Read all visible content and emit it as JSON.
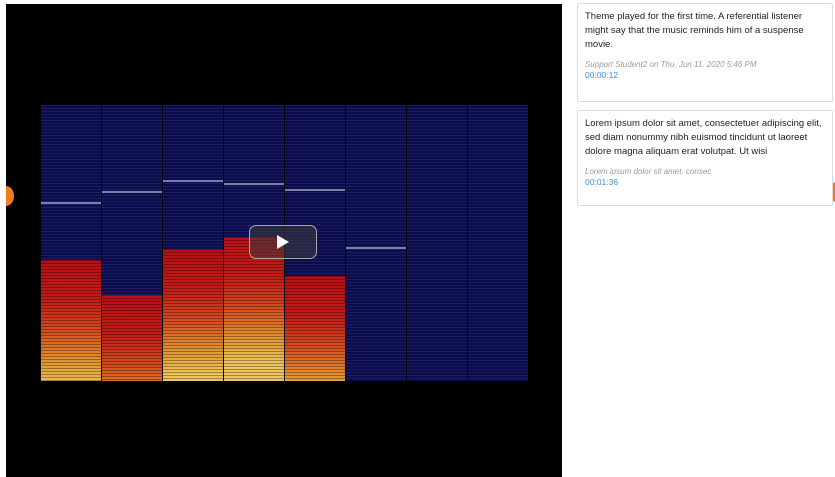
{
  "player": {
    "play_icon": "play-icon",
    "visualizer_bands": [
      {
        "level": 0.44,
        "peak": 0.64
      },
      {
        "level": 0.31,
        "peak": 0.68
      },
      {
        "level": 0.48,
        "peak": 0.72
      },
      {
        "level": 0.52,
        "peak": 0.71
      },
      {
        "level": 0.38,
        "peak": 0.69
      },
      {
        "level": 0.0,
        "peak": 0.48
      },
      {
        "level": 0.0,
        "peak": null
      },
      {
        "level": 0.0,
        "peak": null
      }
    ],
    "colors": {
      "background": "#000000",
      "band_empty": "#0b0c4d",
      "band_fill_top": "#b80e16",
      "band_fill_bottom": "#efc45e",
      "peak_line": "#7a7fa6"
    }
  },
  "navigation": {
    "prev_icon": "circle-arrow-left-icon",
    "next_icon": "circle-arrow-right-icon",
    "accent_color": "#f07e1e"
  },
  "comments": [
    {
      "text": "Theme played for the first time. A referential listener might say that the music reminds him of a suspense movie.",
      "meta": "Support Student2 on Thu, Jun 11, 2020 5:46 PM",
      "timestamp": "00:00:12"
    },
    {
      "text": "Lorem ipsum dolor sit amet, consectetuer adipiscing elit, sed diam nonummy nibh euismod tincidunt ut laoreet dolore magna aliquam erat volutpat. Ut wisi",
      "meta": "Lorem ipsum dolor sit amet, consec",
      "timestamp": "00:01:36"
    }
  ],
  "timestamp_color": "#3a8fd6"
}
